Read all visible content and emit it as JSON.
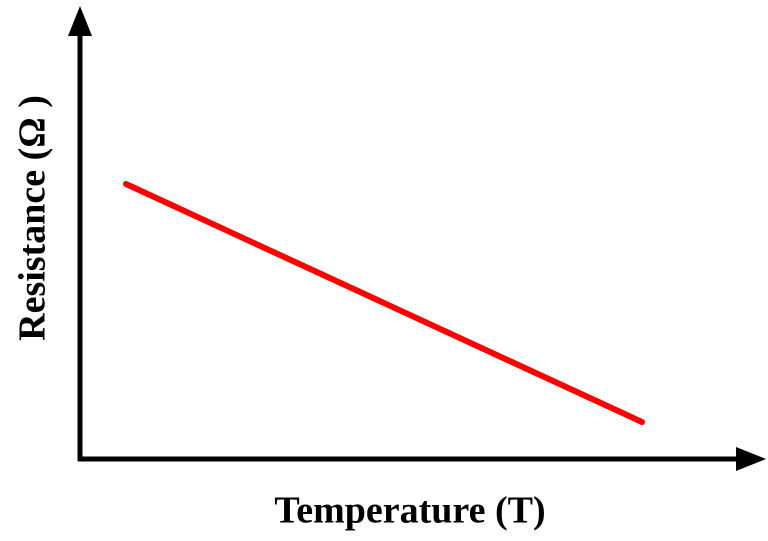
{
  "y_axis_label": "Resistance (Ω )",
  "x_axis_label": "Temperature (T)"
}
